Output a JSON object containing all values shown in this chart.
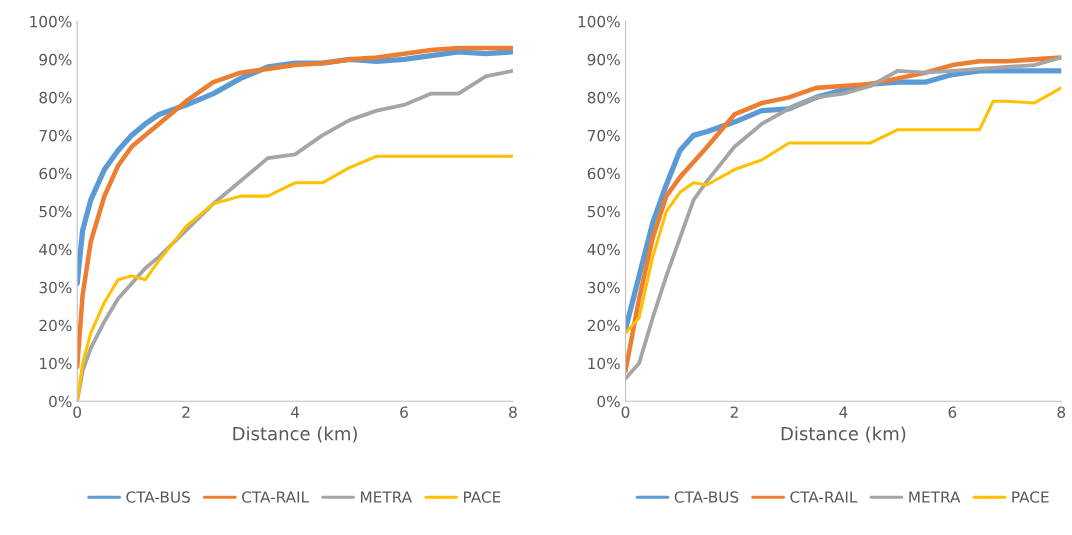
{
  "chart_data": [
    {
      "type": "line",
      "xlabel": "Distance (km)",
      "xlim": [
        0,
        8
      ],
      "xticks": [
        0,
        2,
        4,
        6,
        8
      ],
      "ylim": [
        0,
        100
      ],
      "yticks": [
        {
          "value": 0,
          "label": "0%"
        },
        {
          "value": 10,
          "label": "10%"
        },
        {
          "value": 20,
          "label": "20%"
        },
        {
          "value": 30,
          "label": "30%"
        },
        {
          "value": 40,
          "label": "40%"
        },
        {
          "value": 50,
          "label": "50%"
        },
        {
          "value": 60,
          "label": "60%"
        },
        {
          "value": 70,
          "label": "70%"
        },
        {
          "value": 80,
          "label": "80%"
        },
        {
          "value": 90,
          "label": "90%"
        },
        {
          "value": 100,
          "label": "100%"
        }
      ],
      "grid": false,
      "legend": "bottom",
      "marker": "none",
      "line_style": "solid",
      "series": [
        {
          "name": "CTA-BUS",
          "color": "#5b9bd5",
          "x": [
            0,
            0.1,
            0.25,
            0.5,
            0.75,
            1,
            1.25,
            1.5,
            2,
            2.5,
            3,
            3.5,
            4,
            4.5,
            5,
            5.5,
            6,
            6.5,
            7,
            7.5,
            8
          ],
          "values": [
            31,
            45,
            53,
            61,
            66,
            70,
            73,
            75.5,
            78,
            81,
            85,
            88,
            89,
            89,
            90,
            89.5,
            90,
            91,
            92,
            91.5,
            92
          ]
        },
        {
          "name": "CTA-RAIL",
          "color": "#ed7d31",
          "x": [
            0,
            0.1,
            0.25,
            0.5,
            0.75,
            1,
            1.25,
            1.5,
            2,
            2.5,
            3,
            3.5,
            4,
            4.5,
            5,
            5.5,
            6,
            6.5,
            7,
            7.5,
            8
          ],
          "values": [
            9,
            28,
            42,
            54,
            62,
            67,
            70,
            73,
            79,
            84,
            86.5,
            87.5,
            88.5,
            89,
            90,
            90.5,
            91.5,
            92.5,
            93,
            93,
            93
          ]
        },
        {
          "name": "METRA",
          "color": "#a5a5a5",
          "x": [
            0,
            0.1,
            0.25,
            0.5,
            0.75,
            1,
            1.25,
            1.5,
            2,
            2.5,
            3,
            3.5,
            4,
            4.5,
            5,
            5.5,
            6,
            6.5,
            7,
            7.5,
            8
          ],
          "values": [
            0,
            8,
            14,
            21,
            27,
            31,
            35,
            38,
            45,
            52,
            58,
            64,
            65,
            70,
            74,
            76.5,
            78,
            81,
            81,
            85.5,
            87
          ]
        },
        {
          "name": "PACE",
          "color": "#ffc000",
          "x": [
            0,
            0.1,
            0.25,
            0.5,
            0.75,
            1,
            1.25,
            1.5,
            2,
            2.5,
            3,
            3.5,
            4,
            4.5,
            5,
            5.5,
            6,
            6.5,
            7,
            7.5,
            8
          ],
          "values": [
            0,
            10,
            18,
            26,
            32,
            33,
            32,
            37,
            46,
            52,
            54,
            54,
            57.5,
            57.5,
            61.5,
            64.5,
            64.5,
            64.5,
            64.5,
            64.5,
            64.5
          ]
        }
      ]
    },
    {
      "type": "line",
      "xlabel": "Distance (km)",
      "xlim": [
        0,
        8
      ],
      "xticks": [
        0,
        2,
        4,
        6,
        8
      ],
      "ylim": [
        0,
        100
      ],
      "yticks": [
        {
          "value": 0,
          "label": "0%"
        },
        {
          "value": 10,
          "label": "10%"
        },
        {
          "value": 20,
          "label": "20%"
        },
        {
          "value": 30,
          "label": "30%"
        },
        {
          "value": 40,
          "label": "40%"
        },
        {
          "value": 50,
          "label": "50%"
        },
        {
          "value": 60,
          "label": "60%"
        },
        {
          "value": 70,
          "label": "70%"
        },
        {
          "value": 80,
          "label": "80%"
        },
        {
          "value": 90,
          "label": "90%"
        },
        {
          "value": 100,
          "label": "100%"
        }
      ],
      "grid": false,
      "legend": "bottom",
      "marker": "none",
      "line_style": "solid",
      "series": [
        {
          "name": "CTA-BUS",
          "color": "#5b9bd5",
          "x": [
            0,
            0.25,
            0.5,
            0.75,
            1,
            1.25,
            1.5,
            2,
            2.5,
            3,
            3.5,
            4,
            4.5,
            5,
            5.5,
            6,
            6.5,
            7,
            7.5,
            8
          ],
          "values": [
            19,
            33,
            47,
            57,
            66,
            70,
            71,
            73.5,
            76.5,
            77,
            80,
            82,
            83.5,
            84,
            84,
            86,
            87,
            87,
            87,
            87
          ]
        },
        {
          "name": "CTA-RAIL",
          "color": "#ed7d31",
          "x": [
            0,
            0.25,
            0.5,
            0.75,
            1,
            1.25,
            1.5,
            2,
            2.5,
            3,
            3.5,
            4,
            4.5,
            5,
            5.5,
            6,
            6.5,
            7,
            7.5,
            8
          ],
          "values": [
            8,
            27,
            43,
            54,
            59,
            63,
            67,
            75.5,
            78.5,
            80,
            82.5,
            83,
            83.5,
            85,
            86.5,
            88.5,
            89.5,
            89.5,
            90,
            90.5
          ]
        },
        {
          "name": "METRA",
          "color": "#a5a5a5",
          "x": [
            0,
            0.25,
            0.5,
            0.75,
            1,
            1.25,
            1.5,
            2,
            2.5,
            3,
            3.5,
            4,
            4.5,
            5,
            5.5,
            6,
            6.5,
            7,
            7.5,
            8
          ],
          "values": [
            6,
            10,
            22,
            33,
            43,
            53,
            58,
            67,
            73,
            77,
            80,
            81,
            83,
            87,
            86.5,
            87,
            87.5,
            88,
            88.5,
            90.5
          ]
        },
        {
          "name": "PACE",
          "color": "#ffc000",
          "x": [
            0,
            0.25,
            0.5,
            0.75,
            1,
            1.25,
            1.5,
            2,
            2.5,
            3,
            3.5,
            4,
            4.5,
            5,
            5.5,
            6,
            6.5,
            6.75,
            7,
            7.5,
            8
          ],
          "values": [
            18,
            22,
            38,
            50,
            55,
            57.5,
            57,
            61,
            63.5,
            68,
            68,
            68,
            68,
            71.5,
            71.5,
            71.5,
            71.5,
            79,
            79,
            78.5,
            82.5
          ]
        }
      ]
    }
  ]
}
